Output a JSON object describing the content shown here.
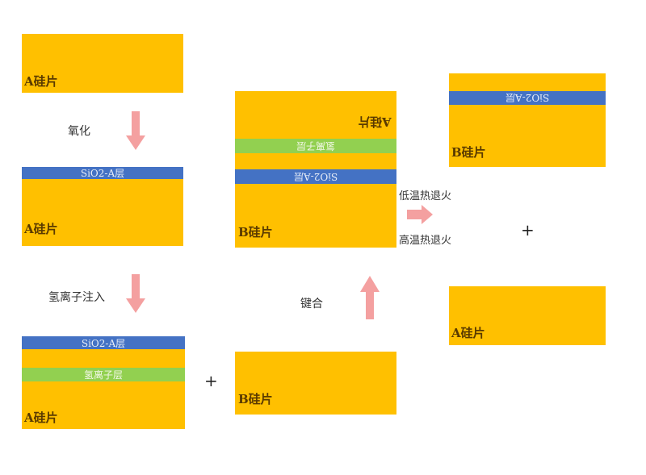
{
  "colors": {
    "wafer": "#FFC000",
    "oxide": "#4472C4",
    "hydrogen": "#92D050",
    "arrow": "#F4A0A0"
  },
  "step1": {
    "wafer_label": "A硅片"
  },
  "step1_arrow_label": "氧化",
  "step2": {
    "oxide_label": "SiO2-A层",
    "wafer_label": "A硅片"
  },
  "step2_arrow_label": "氢离子注入",
  "step3": {
    "oxide_label": "SiO2-A层",
    "hydrogen_label": "氢离子层",
    "wafer_label": "A硅片"
  },
  "plus": "+",
  "wafer_b": {
    "wafer_label": "B硅片"
  },
  "bond_label": "键合",
  "bonded": {
    "top_label": "A硅片",
    "hydrogen_label": "氢离子层",
    "oxide_label": "SiO2-A层",
    "wafer_label": "B硅片"
  },
  "anneal": {
    "low": "低温热退火",
    "high": "高温热退火"
  },
  "result_b": {
    "oxide_label": "SiO2-A层",
    "wafer_label": "B硅片"
  },
  "result_a": {
    "wafer_label": "A硅片"
  }
}
